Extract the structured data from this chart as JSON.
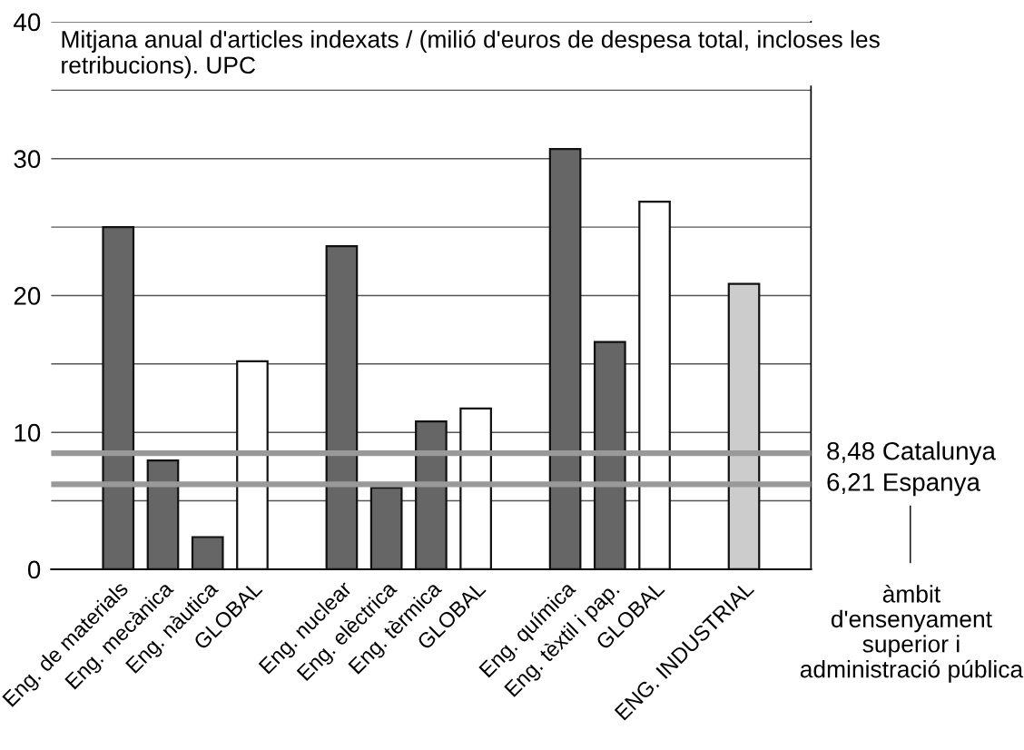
{
  "chart_data": {
    "type": "bar",
    "title": "Mitjana anual d'articles indexats / (milió d'euros de despesa total, incloses les retribucions). UPC",
    "categories": [
      null,
      "Eng. de materials",
      "Eng. mecànica",
      "Eng. nàutica",
      "GLOBAL",
      null,
      "Eng. nuclear",
      "Eng. elèctrica",
      "Eng. tèrmica",
      "GLOBAL",
      null,
      "Eng. química",
      "Eng. tèxtil i pap.",
      "GLOBAL",
      null,
      "ENG. INDUSTRIAL",
      null
    ],
    "values": [
      null,
      25.0,
      7.95,
      2.35,
      15.2,
      null,
      23.6,
      5.95,
      10.8,
      11.75,
      null,
      30.7,
      16.6,
      26.85,
      null,
      20.85,
      null
    ],
    "colors": [
      null,
      "#666666",
      "#666666",
      "#666666",
      "#ffffff",
      null,
      "#666666",
      "#666666",
      "#666666",
      "#ffffff",
      null,
      "#666666",
      "#666666",
      "#ffffff",
      null,
      "#cccccc",
      null
    ],
    "ylim": [
      0,
      40
    ],
    "yticks": [
      0,
      {
        "value": 5,
        "label": null
      },
      10,
      {
        "value": 15,
        "label": null
      },
      20,
      {
        "value": 25,
        "label": null
      },
      30,
      {
        "value": 35,
        "label": null
      },
      40
    ],
    "grid": "y",
    "ref_lines": [
      {
        "axis": "y",
        "value": 8.48,
        "label": "8,48 Catalunya",
        "color": "#999999"
      },
      {
        "axis": "y",
        "value": 6.21,
        "label": "6,21 Espanya",
        "color": "#999999"
      }
    ],
    "annotations": [
      "àmbit d'ensenyament superior i administració pública"
    ]
  }
}
